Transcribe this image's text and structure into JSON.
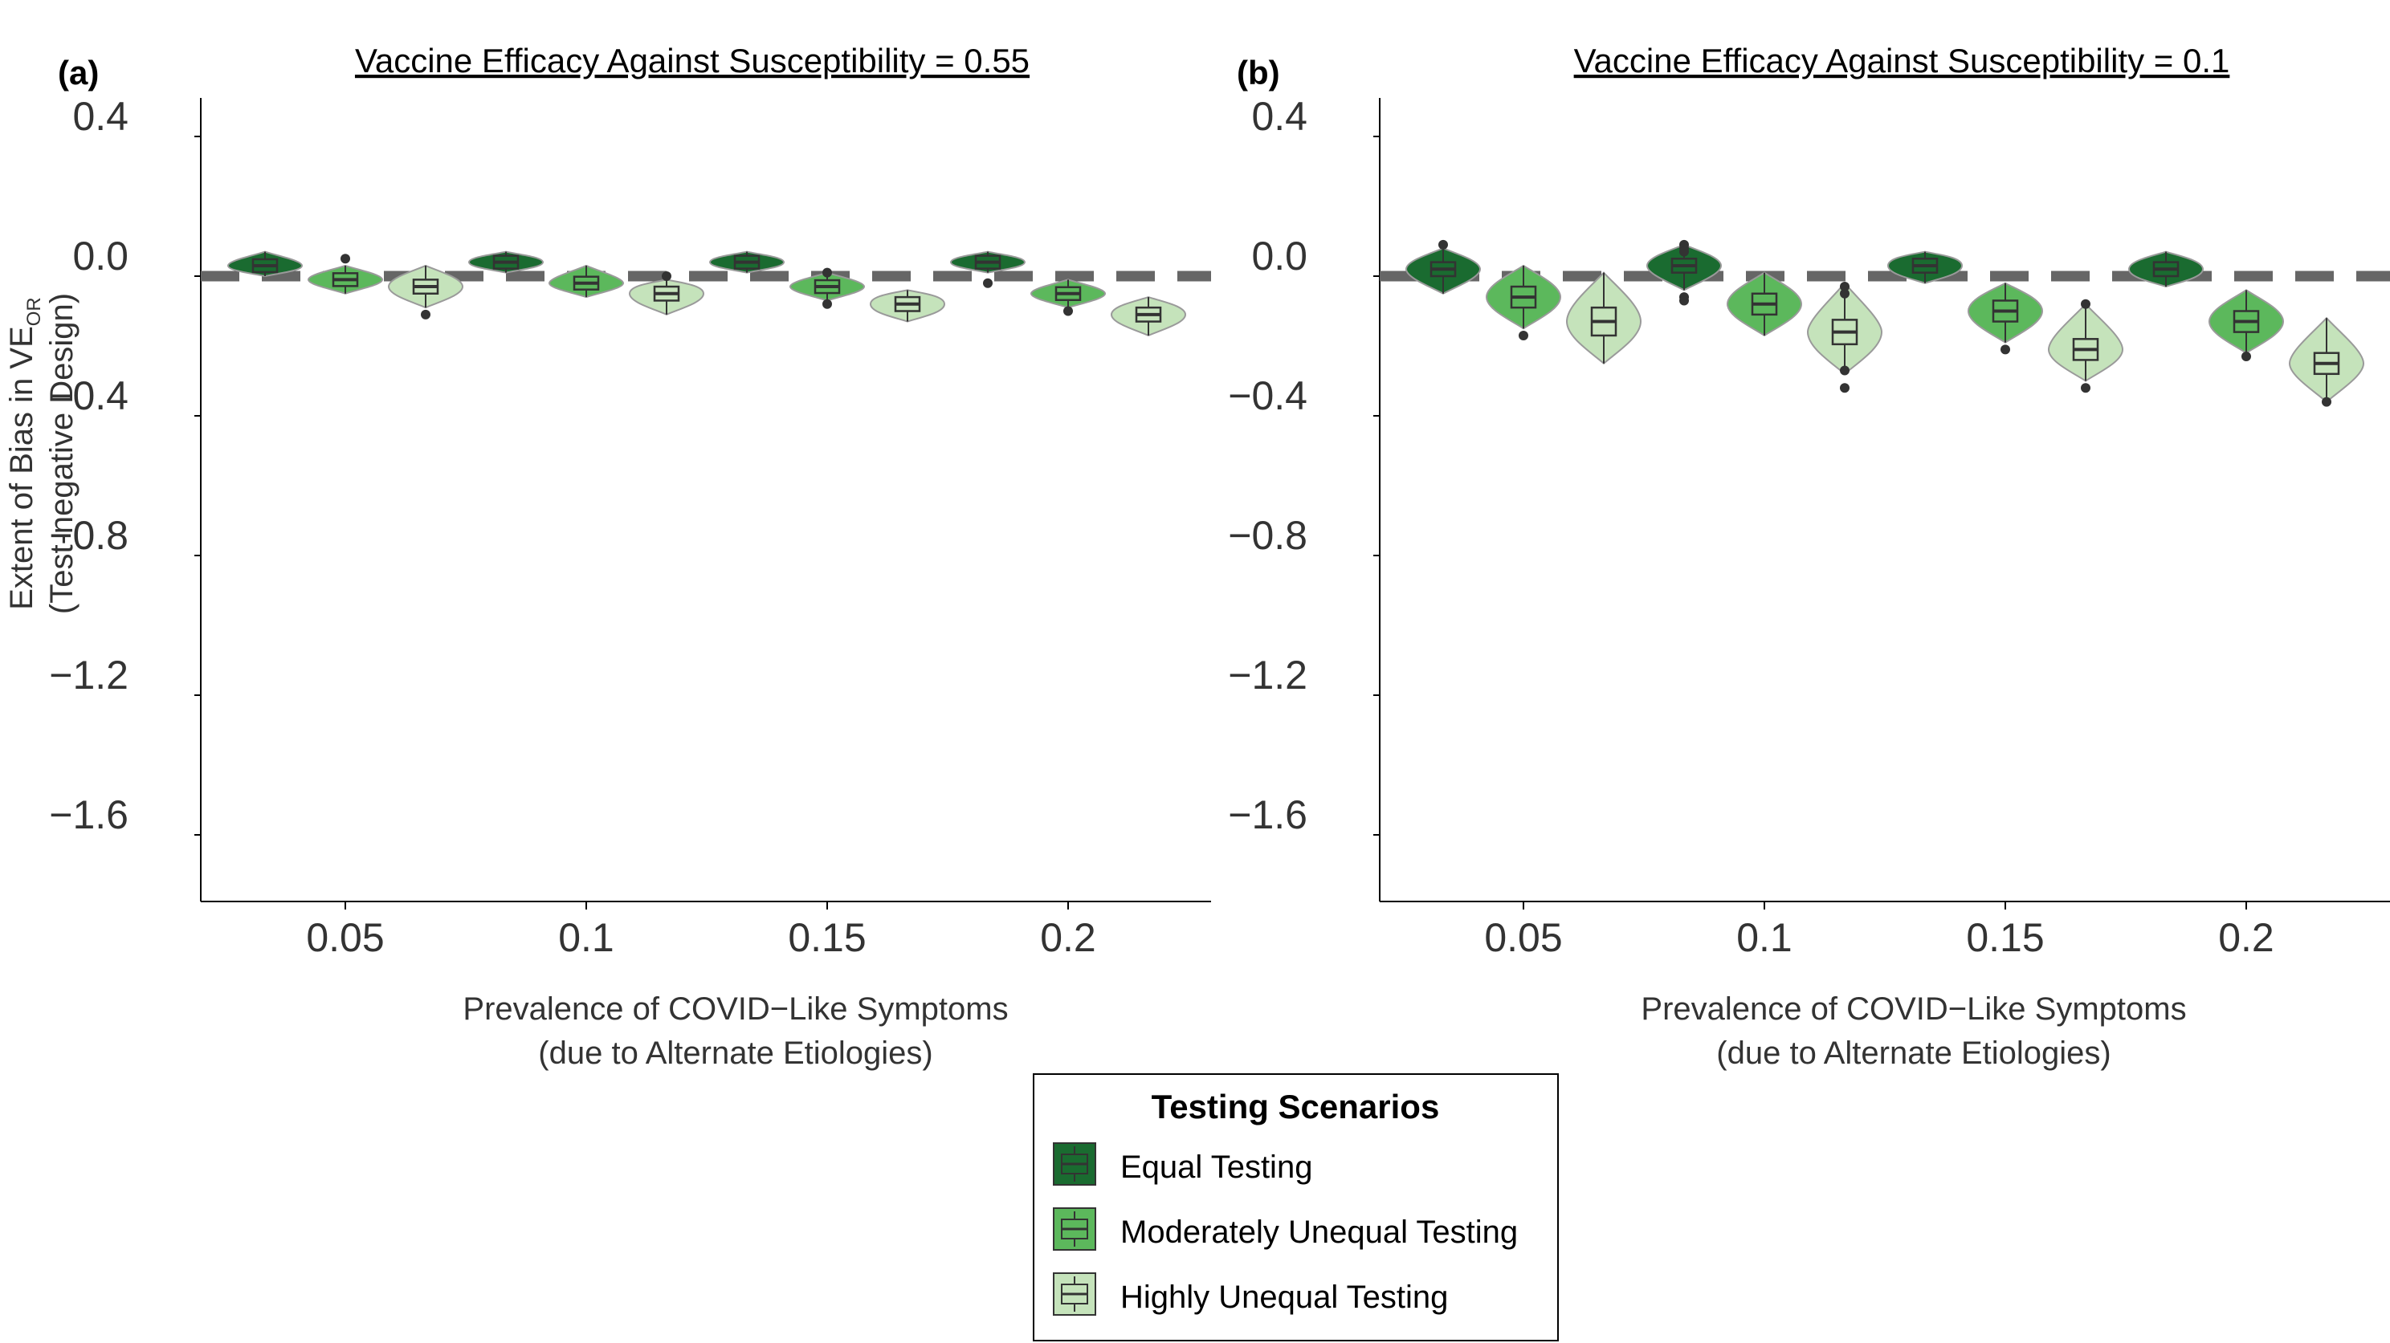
{
  "colors": {
    "equal": "#1a6b30",
    "moderate": "#5cb85c",
    "high": "#c5e3bb",
    "reference_line": "#666666",
    "box_border": "#333333"
  },
  "legend": {
    "title": "Testing Scenarios",
    "items": [
      {
        "key": "equal",
        "label": "Equal Testing"
      },
      {
        "key": "moderate",
        "label": "Moderately Unequal Testing"
      },
      {
        "key": "high",
        "label": "Highly Unequal Testing"
      }
    ]
  },
  "y_axis_title": {
    "line1_prefix": "Extent of Bias in VE",
    "line1_subscript": "OR",
    "line2": "(Test-negative Design)"
  },
  "chart_data": [
    {
      "panel": "(a)",
      "title": "Vaccine Efficacy Against Susceptibility = 0.55",
      "type": "violin",
      "xlabel": [
        "Prevalence of COVID−Like Symptoms",
        "(due to Alternate Etiologies)"
      ],
      "categories": [
        "0.05",
        "0.1",
        "0.15",
        "0.2"
      ],
      "y_ticks": [
        "0.4",
        "0.0",
        "−0.4",
        "−0.8",
        "−1.2",
        "−1.6"
      ],
      "ylim": [
        -1.8,
        0.45
      ],
      "reference_line": 0,
      "series": [
        {
          "name": "Equal Testing",
          "key": "equal",
          "medians": [
            0.03,
            0.04,
            0.04,
            0.04
          ],
          "q1": [
            0.02,
            0.03,
            0.03,
            0.03
          ],
          "q3": [
            0.04,
            0.05,
            0.05,
            0.05
          ],
          "min": [
            0.0,
            0.01,
            0.01,
            0.01
          ],
          "max": [
            0.07,
            0.07,
            0.07,
            0.07
          ],
          "outliers": [
            [],
            [],
            [],
            [
              -0.02
            ]
          ]
        },
        {
          "name": "Moderately Unequal Testing",
          "key": "moderate",
          "medians": [
            -0.01,
            -0.02,
            -0.03,
            -0.05
          ],
          "q1": [
            -0.02,
            -0.03,
            -0.04,
            -0.06
          ],
          "q3": [
            0.0,
            -0.01,
            -0.02,
            -0.04
          ],
          "min": [
            -0.05,
            -0.06,
            -0.07,
            -0.09
          ],
          "max": [
            0.03,
            0.03,
            0.01,
            -0.01
          ],
          "outliers": [
            [
              0.05
            ],
            [],
            [
              0.01,
              -0.08
            ],
            [
              -0.1
            ]
          ]
        },
        {
          "name": "Highly Unequal Testing",
          "key": "high",
          "medians": [
            -0.03,
            -0.05,
            -0.08,
            -0.11
          ],
          "q1": [
            -0.05,
            -0.07,
            -0.1,
            -0.13
          ],
          "q3": [
            -0.01,
            -0.03,
            -0.06,
            -0.09
          ],
          "min": [
            -0.09,
            -0.11,
            -0.13,
            -0.17
          ],
          "max": [
            0.03,
            -0.01,
            -0.04,
            -0.06
          ],
          "outliers": [
            [
              -0.11
            ],
            [
              0.0
            ],
            [],
            []
          ]
        }
      ]
    },
    {
      "panel": "(b)",
      "title": "Vaccine Efficacy Against Susceptibility = 0.1",
      "type": "violin",
      "xlabel": [
        "Prevalence of COVID−Like Symptoms",
        "(due to Alternate Etiologies)"
      ],
      "categories": [
        "0.05",
        "0.1",
        "0.15",
        "0.2"
      ],
      "y_ticks": [
        "0.4",
        "0.0",
        "−0.4",
        "−0.8",
        "−1.2",
        "−1.6"
      ],
      "ylim": [
        -1.8,
        0.45
      ],
      "reference_line": 0,
      "series": [
        {
          "name": "Equal Testing",
          "key": "equal",
          "medians": [
            0.02,
            0.03,
            0.03,
            0.02
          ],
          "q1": [
            0.0,
            0.01,
            0.01,
            0.0
          ],
          "q3": [
            0.04,
            0.05,
            0.05,
            0.04
          ],
          "min": [
            -0.05,
            -0.04,
            -0.02,
            -0.03
          ],
          "max": [
            0.08,
            0.09,
            0.07,
            0.07
          ],
          "outliers": [
            [
              0.09
            ],
            [
              0.09,
              0.08,
              0.07,
              -0.06,
              -0.07
            ],
            [],
            []
          ]
        },
        {
          "name": "Moderately Unequal Testing",
          "key": "moderate",
          "medians": [
            -0.06,
            -0.08,
            -0.1,
            -0.13
          ],
          "q1": [
            -0.09,
            -0.11,
            -0.13,
            -0.16
          ],
          "q3": [
            -0.03,
            -0.05,
            -0.07,
            -0.1
          ],
          "min": [
            -0.15,
            -0.17,
            -0.19,
            -0.22
          ],
          "max": [
            0.03,
            0.01,
            -0.02,
            -0.04
          ],
          "outliers": [
            [
              -0.17
            ],
            [],
            [
              -0.21
            ],
            [
              -0.23
            ]
          ]
        },
        {
          "name": "Highly Unequal Testing",
          "key": "high",
          "medians": [
            -0.13,
            -0.16,
            -0.21,
            -0.25
          ],
          "q1": [
            -0.17,
            -0.2,
            -0.24,
            -0.28
          ],
          "q3": [
            -0.09,
            -0.13,
            -0.18,
            -0.22
          ],
          "min": [
            -0.25,
            -0.28,
            -0.3,
            -0.36
          ],
          "max": [
            0.01,
            -0.02,
            -0.08,
            -0.12
          ],
          "outliers": [
            [],
            [
              -0.03,
              -0.05,
              -0.27,
              -0.32
            ],
            [
              -0.08,
              -0.32
            ],
            [
              -0.36
            ]
          ]
        }
      ]
    }
  ]
}
